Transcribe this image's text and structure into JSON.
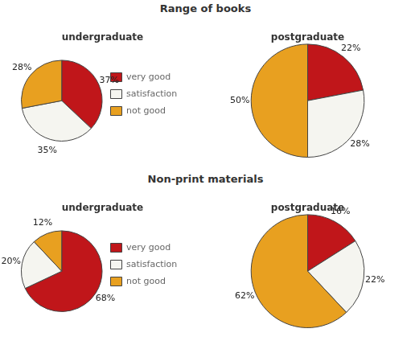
{
  "chart_data": [
    {
      "type": "pie",
      "title": "Range of books",
      "subtitle": "undergraduate",
      "categories": [
        "very good",
        "satisfaction",
        "not good"
      ],
      "values": [
        37,
        35,
        28
      ],
      "value_labels": [
        "37%",
        "35%",
        "28%"
      ],
      "colors": [
        "#C0161A",
        "#F5F5F0",
        "#E8A020"
      ],
      "data_labels": true,
      "legend": "right"
    },
    {
      "type": "pie",
      "title": "Range of books",
      "subtitle": "postgraduate",
      "categories": [
        "very good",
        "satisfaction",
        "not good"
      ],
      "values": [
        22,
        28,
        50
      ],
      "value_labels": [
        "22%",
        "28%",
        "50%"
      ],
      "colors": [
        "#C0161A",
        "#F5F5F0",
        "#E8A020"
      ],
      "data_labels": true
    },
    {
      "type": "pie",
      "title": "Non-print materials",
      "subtitle": "undergraduate",
      "categories": [
        "very good",
        "satisfaction",
        "not good"
      ],
      "values": [
        68,
        20,
        12
      ],
      "value_labels": [
        "68%",
        "20%",
        "12%"
      ],
      "colors": [
        "#C0161A",
        "#F5F5F0",
        "#E8A020"
      ],
      "data_labels": true,
      "legend": "right"
    },
    {
      "type": "pie",
      "title": "Non-print materials",
      "subtitle": "postgraduate",
      "categories": [
        "very good",
        "satisfaction",
        "not good"
      ],
      "values": [
        16,
        22,
        62
      ],
      "value_labels": [
        "16%",
        "22%",
        "62%"
      ],
      "colors": [
        "#C0161A",
        "#F5F5F0",
        "#E8A020"
      ],
      "data_labels": true
    }
  ]
}
